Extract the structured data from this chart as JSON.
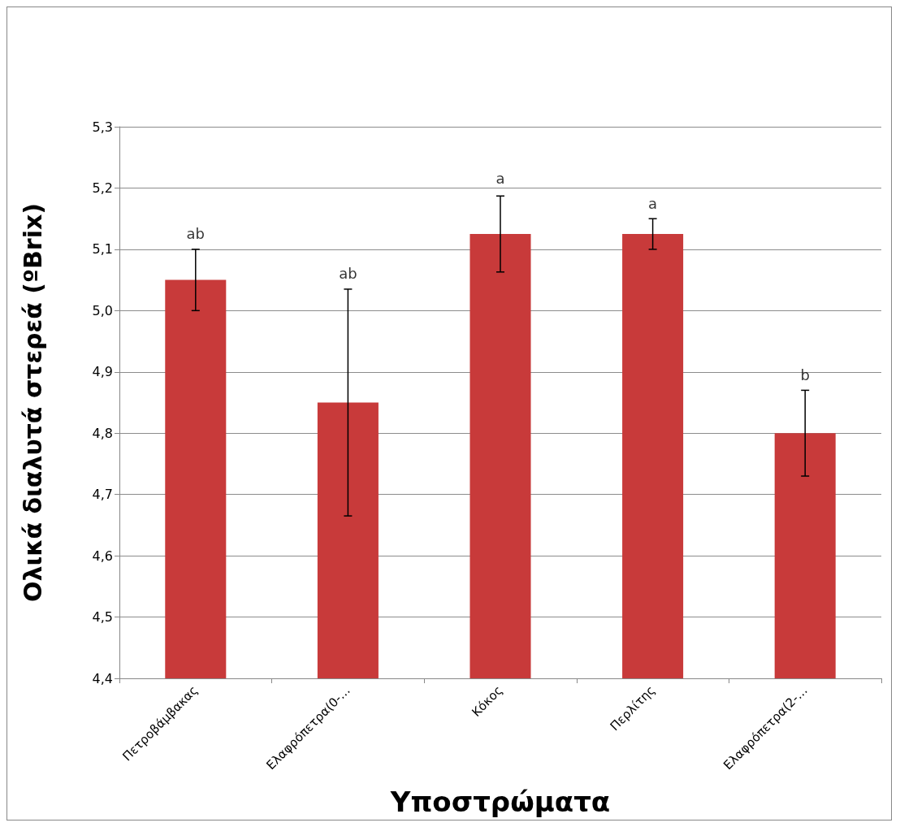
{
  "chart_data": {
    "type": "bar",
    "xlabel": "Υποστρώματα",
    "ylabel": "Ολικά διαλυτά στερεά (ºBrix)",
    "categories": [
      "Πετροβάμβακας",
      "Ελαφρόπετρα(0-…",
      "Κόκος",
      "Περλίτης",
      "Ελαφρόπετρα(2-…"
    ],
    "values": [
      5.05,
      4.85,
      5.125,
      5.125,
      4.8
    ],
    "errors": [
      0.05,
      0.185,
      0.062,
      0.025,
      0.07
    ],
    "color": "#c83a3a",
    "ylim": [
      4.4,
      5.3
    ],
    "yticks": [
      {
        "value": 4.4,
        "label": "4,4"
      },
      {
        "value": 4.5,
        "label": "4,5"
      },
      {
        "value": 4.6,
        "label": "4,6"
      },
      {
        "value": 4.7,
        "label": "4,7"
      },
      {
        "value": 4.8,
        "label": "4,8"
      },
      {
        "value": 4.9,
        "label": "4,9"
      },
      {
        "value": 5.0,
        "label": "5,0"
      },
      {
        "value": 5.1,
        "label": "5,1"
      },
      {
        "value": 5.2,
        "label": "5,2"
      },
      {
        "value": 5.3,
        "label": "5,3"
      }
    ],
    "grid": "y",
    "annotations": [
      {
        "text": "ab",
        "x": "Πετροβάμβακας",
        "y": 5.1
      },
      {
        "text": "ab",
        "x": "Ελαφρόπετρα(0-…",
        "y": 5.035
      },
      {
        "text": "a",
        "x": "Κόκος",
        "y": 5.19
      },
      {
        "text": "a",
        "x": "Περλίτης",
        "y": 5.15
      },
      {
        "text": "b",
        "x": "Ελαφρόπετρα(2-…",
        "y": 4.87
      }
    ]
  }
}
